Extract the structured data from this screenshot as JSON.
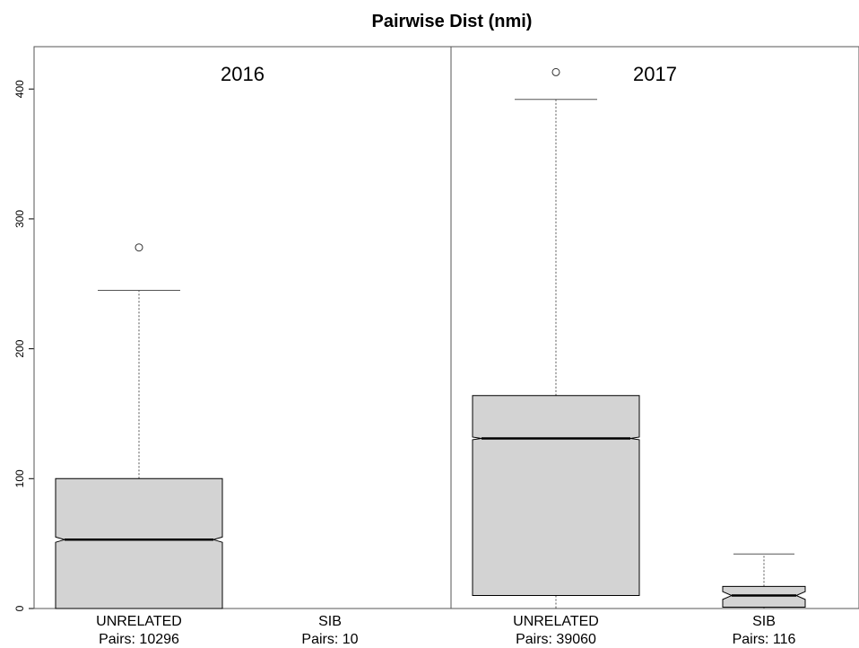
{
  "chart_data": {
    "type": "boxplot",
    "title": "Pairwise Dist (nmi)",
    "ylim": [
      0,
      430
    ],
    "yticks": [
      0,
      100,
      200,
      300,
      400
    ],
    "notched": true,
    "panels": [
      {
        "label": "2016",
        "groups": [
          {
            "name": "UNRELATED",
            "count_label": "Pairs: 10296",
            "whisker_low": 0,
            "q1": 0,
            "median": 53,
            "q3": 100,
            "whisker_high": 245,
            "notch_low": 51,
            "notch_high": 55,
            "outliers": [
              278
            ]
          },
          {
            "name": "SIB",
            "count_label": "Pairs: 10",
            "whisker_low": 0,
            "q1": 0,
            "median": 0,
            "q3": 0,
            "whisker_high": 0,
            "notch_low": 0,
            "notch_high": 0,
            "outliers": []
          }
        ]
      },
      {
        "label": "2017",
        "groups": [
          {
            "name": "UNRELATED",
            "count_label": "Pairs: 39060",
            "whisker_low": 0,
            "q1": 10,
            "median": 131,
            "q3": 164,
            "whisker_high": 392,
            "notch_low": 130,
            "notch_high": 132,
            "outliers": [
              413
            ]
          },
          {
            "name": "SIB",
            "count_label": "Pairs: 116",
            "whisker_low": 0,
            "q1": 1,
            "median": 10,
            "q3": 17,
            "whisker_high": 42,
            "notch_low": 7,
            "notch_high": 13,
            "outliers": []
          }
        ]
      }
    ]
  },
  "style": {
    "box_fill": "#d3d3d3",
    "stroke": "#000000",
    "whisker_color": "#555555",
    "frame_color": "#555555"
  }
}
